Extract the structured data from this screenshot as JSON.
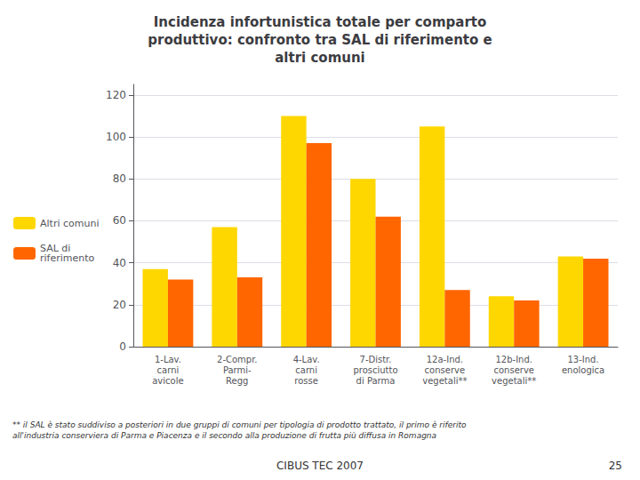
{
  "chart_data": {
    "type": "bar",
    "title": "Incidenza infortunistica totale per comparto\nproduttivo: confronto tra SAL di riferimento e\naltri comuni",
    "categories": [
      "1-Lav.\ncarni\navicole",
      "2-Compr.\nParmi-\nRegg",
      "4-Lav.\ncarni\nrosse",
      "7-Distr.\nprosciutto\ndi Parma",
      "12a-Ind.\nconserve\nvegetali**",
      "12b-Ind.\nconserve\nvegetali**",
      "13-Ind.\nenologica"
    ],
    "series": [
      {
        "name": "Altri comuni",
        "color": "#FFD700",
        "values": [
          37,
          57,
          110,
          80,
          105,
          24,
          43
        ]
      },
      {
        "name": "SAL di\nriferimento",
        "color": "#FF6600",
        "values": [
          32,
          33,
          97,
          62,
          27,
          22,
          42
        ]
      }
    ],
    "ylim": [
      0,
      125
    ],
    "yticks": [
      0,
      20,
      40,
      60,
      80,
      100,
      120
    ],
    "grid": true,
    "legend": "left",
    "annotations": [
      "** il SAL è stato suddiviso a posteriori in due gruppi di comuni per tipologia di prodotto trattato, il primo è riferito\nall'industria conserviera di Parma e Piacenza e il secondo alla produzione di frutta più diffusa in Romagna",
      "CIBUS TEC 2007",
      "25"
    ]
  }
}
